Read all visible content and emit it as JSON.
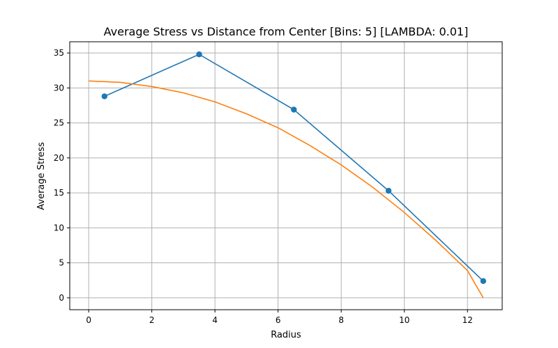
{
  "chart_data": {
    "type": "line",
    "title": "Average Stress vs Distance from Center [Bins: 5] [LAMBDA: 0.01]",
    "xlabel": "Radius",
    "ylabel": "Average Stress",
    "xlim": [
      -0.6,
      13.1
    ],
    "ylim": [
      -1.7,
      36.6
    ],
    "xticks": [
      0,
      2,
      4,
      6,
      8,
      10,
      12
    ],
    "yticks": [
      0,
      5,
      10,
      15,
      20,
      25,
      30,
      35
    ],
    "grid": true,
    "series": [
      {
        "color": "#1f77b4",
        "marker": "circle",
        "x": [
          0.5,
          3.5,
          6.5,
          9.5,
          12.5
        ],
        "y": [
          28.8,
          34.8,
          26.9,
          15.3,
          2.4
        ]
      },
      {
        "color": "#ff7f0e",
        "marker": "none",
        "x": [
          0,
          1,
          2,
          3,
          4,
          5,
          6,
          7,
          8,
          9,
          10,
          11,
          12,
          12.5
        ],
        "y": [
          31.0,
          30.8,
          30.2,
          29.3,
          28.0,
          26.3,
          24.3,
          21.8,
          19.0,
          15.8,
          12.2,
          8.2,
          3.9,
          0.0
        ]
      }
    ]
  }
}
